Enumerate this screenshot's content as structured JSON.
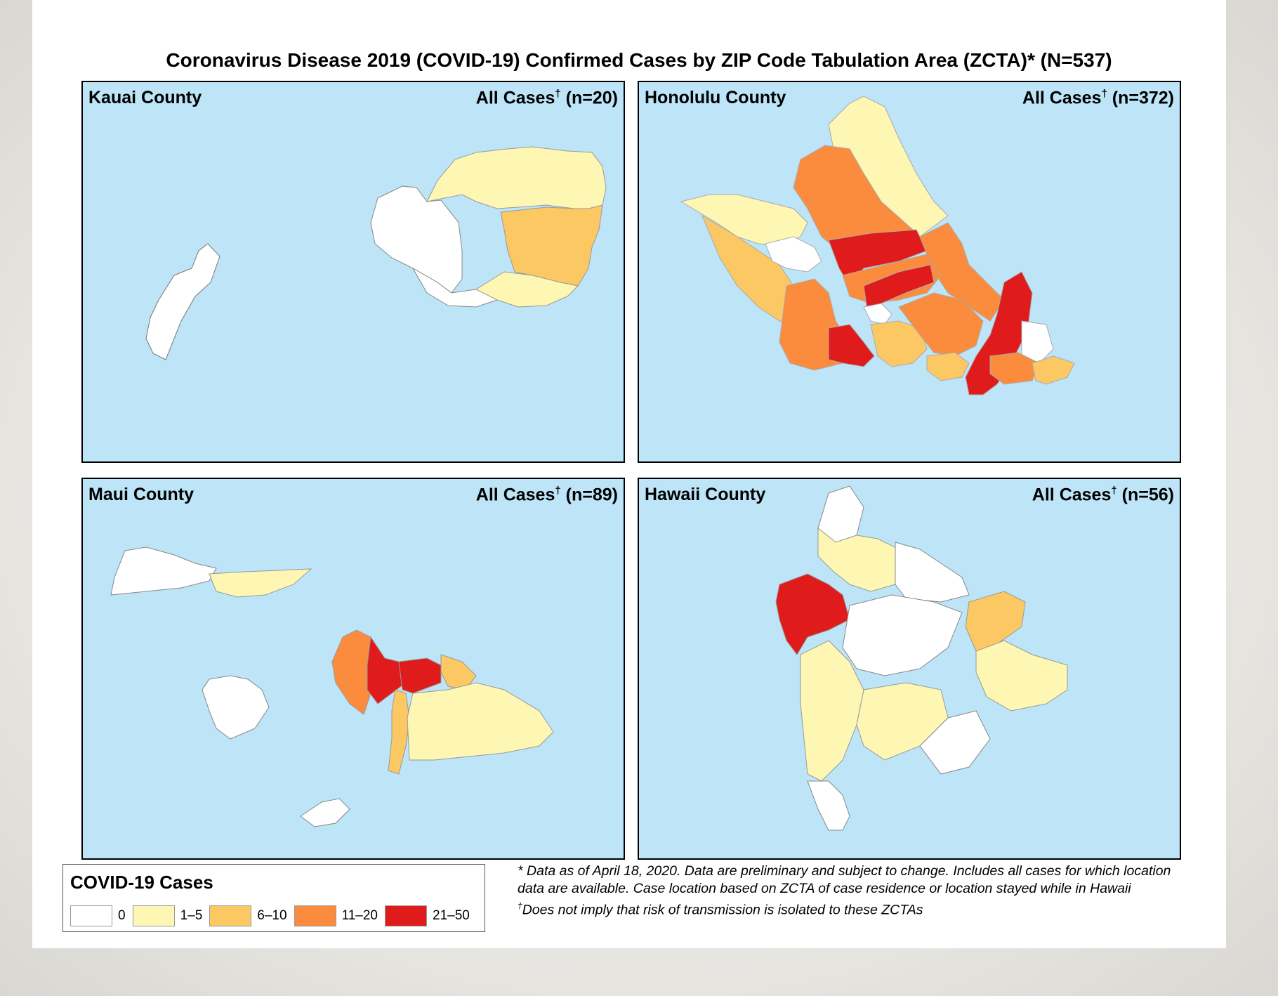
{
  "title": "Coronavirus Disease 2019 (COVID-19) Confirmed Cases by ZIP Code Tabulation Area (ZCTA)* (N=537)",
  "colors": {
    "ocean": "#bde4f7",
    "bin_0": "#ffffff",
    "bin_1_5": "#fdf7b3",
    "bin_6_10": "#fcc863",
    "bin_11_20": "#fb8c3d",
    "bin_21_50": "#e01b1b"
  },
  "panels": [
    {
      "name": "Kauai County",
      "cases_prefix": "All Cases",
      "dagger": "†",
      "count": "(n=20)"
    },
    {
      "name": "Honolulu County",
      "cases_prefix": "All Cases",
      "dagger": "†",
      "count": "(n=372)"
    },
    {
      "name": "Maui County",
      "cases_prefix": "All Cases",
      "dagger": "†",
      "count": "(n=89)"
    },
    {
      "name": "Hawaii County",
      "cases_prefix": "All Cases",
      "dagger": "†",
      "count": "(n=56)"
    }
  ],
  "legend": {
    "title": "COVID-19 Cases",
    "bins": [
      {
        "label": "0",
        "color": "#ffffff"
      },
      {
        "label": "1–5",
        "color": "#fdf7b3"
      },
      {
        "label": "6–10",
        "color": "#fcc863"
      },
      {
        "label": "11–20",
        "color": "#fb8c3d"
      },
      {
        "label": "21–50",
        "color": "#e01b1b"
      }
    ]
  },
  "footnotes": {
    "star_symbol": "*",
    "star_text": "Data as of April 18, 2020. Data are preliminary and subject to change. Includes all cases for which location data are available. Case location based on ZCTA of case residence or location stayed while in Hawaii",
    "dagger_symbol": "†",
    "dagger_text": "Does not imply that risk of transmission is isolated to these ZCTAs"
  }
}
